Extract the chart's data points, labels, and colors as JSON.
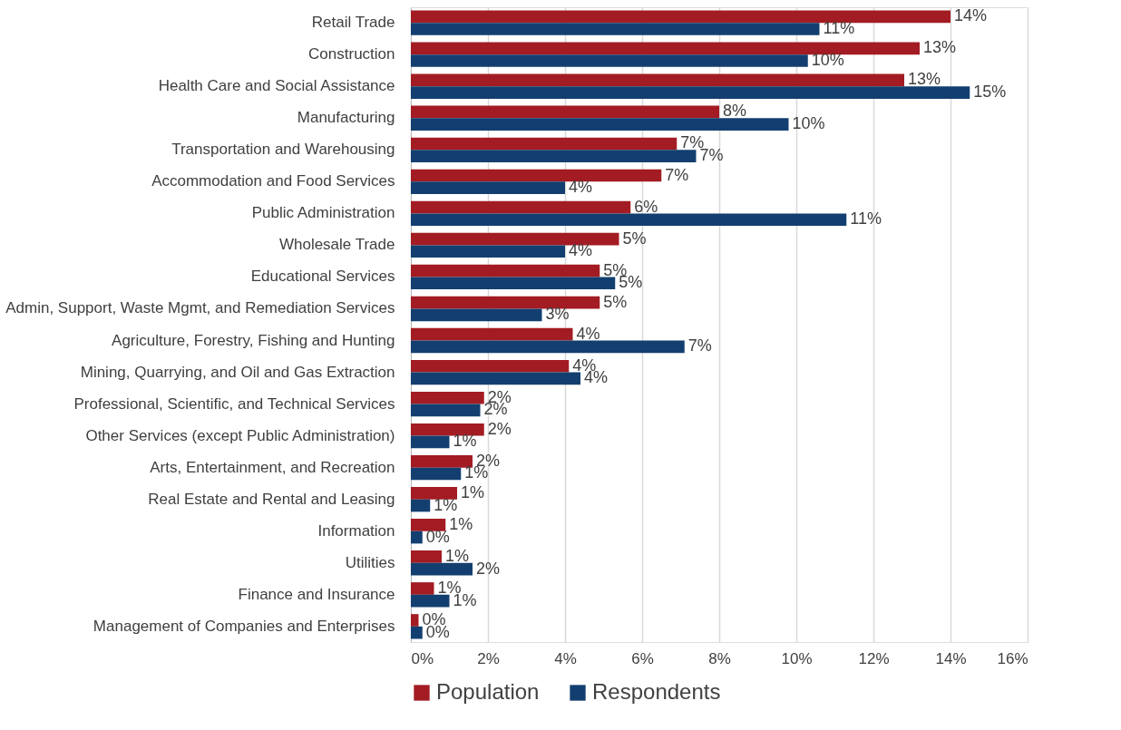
{
  "chart_data": {
    "type": "bar",
    "orientation": "horizontal",
    "categories": [
      "Retail Trade",
      "Construction",
      "Health Care and Social Assistance",
      "Manufacturing",
      "Transportation and Warehousing",
      "Accommodation and Food Services",
      "Public Administration",
      "Wholesale Trade",
      "Educational Services",
      "Admin, Support, Waste Mgmt, and Remediation Services",
      "Agriculture, Forestry, Fishing and Hunting",
      "Mining, Quarrying, and Oil and Gas Extraction",
      "Professional, Scientific, and Technical Services",
      "Other Services (except Public Administration)",
      "Arts, Entertainment, and Recreation",
      "Real Estate and Rental and Leasing",
      "Information",
      "Utilities",
      "Finance and Insurance",
      "Management of Companies and Enterprises"
    ],
    "series": [
      {
        "name": "Population",
        "color": "#a31c23",
        "values": [
          14.0,
          13.2,
          12.8,
          8.0,
          6.9,
          6.5,
          5.7,
          5.4,
          4.9,
          4.9,
          4.2,
          4.1,
          1.9,
          1.9,
          1.6,
          1.2,
          0.9,
          0.8,
          0.6,
          0.2
        ],
        "value_labels": [
          "14%",
          "13%",
          "13%",
          "8%",
          "7%",
          "7%",
          "6%",
          "5%",
          "5%",
          "5%",
          "4%",
          "4%",
          "2%",
          "2%",
          "2%",
          "1%",
          "1%",
          "1%",
          "1%",
          "0%"
        ]
      },
      {
        "name": "Respondents",
        "color": "#133f70",
        "values": [
          10.6,
          10.3,
          14.5,
          9.8,
          7.4,
          4.0,
          11.3,
          4.0,
          5.3,
          3.4,
          7.1,
          4.4,
          1.8,
          1.0,
          1.3,
          0.5,
          0.3,
          1.6,
          1.0,
          0.3
        ],
        "value_labels": [
          "11%",
          "10%",
          "15%",
          "10%",
          "7%",
          "4%",
          "11%",
          "4%",
          "5%",
          "3%",
          "7%",
          "4%",
          "2%",
          "1%",
          "1%",
          "1%",
          "0%",
          "2%",
          "1%",
          "0%"
        ]
      }
    ],
    "xlim": [
      0,
      16
    ],
    "xticks": [
      {
        "value": 0,
        "label": "0%"
      },
      {
        "value": 2,
        "label": "2%"
      },
      {
        "value": 4,
        "label": "4%"
      },
      {
        "value": 6,
        "label": "6%"
      },
      {
        "value": 8,
        "label": "8%"
      },
      {
        "value": 10,
        "label": "10%"
      },
      {
        "value": 12,
        "label": "12%"
      },
      {
        "value": 14,
        "label": "14%"
      },
      {
        "value": 16,
        "label": "16%"
      }
    ],
    "grid": "x",
    "legend": "bottom"
  }
}
